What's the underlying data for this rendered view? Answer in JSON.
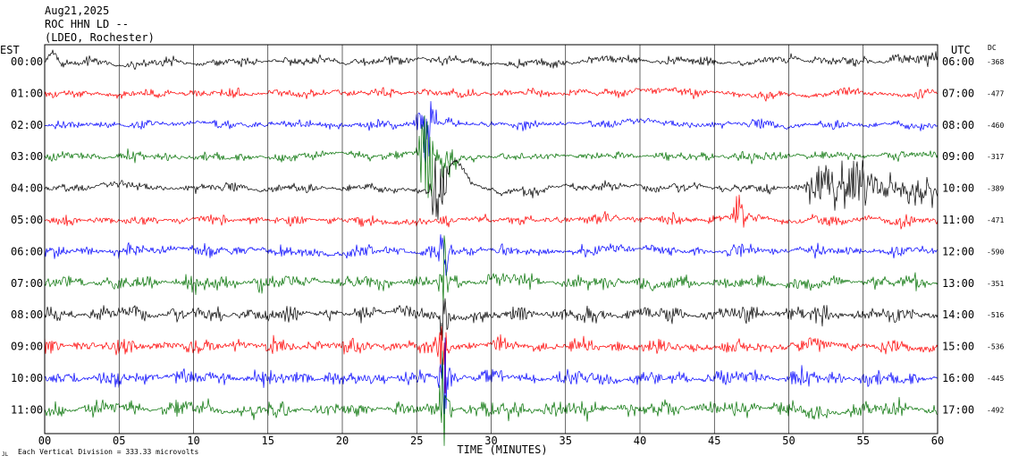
{
  "chart_data": {
    "type": "line",
    "header": {
      "date": "Aug21,2025",
      "station": "ROC HHN LD --",
      "network": "(LDEO, Rochester)"
    },
    "left_timezone": "EST",
    "right_timezone": "UTC",
    "dc_label": "DC",
    "xlabel": "TIME (MINUTES)",
    "xlim": [
      0,
      60
    ],
    "x_ticks": [
      "00",
      "05",
      "10",
      "15",
      "20",
      "25",
      "30",
      "35",
      "40",
      "45",
      "50",
      "55",
      "60"
    ],
    "vertical_division_note": "Each Vertical Division =  333.33 microvolts",
    "corner_mark": "JL",
    "grid": true,
    "trace_colors": [
      "#000000",
      "#ff0000",
      "#0000ff",
      "#007000"
    ],
    "rows": [
      {
        "est": "00:00",
        "utc": "06:00",
        "dc": "-368"
      },
      {
        "est": "01:00",
        "utc": "07:00",
        "dc": "-477"
      },
      {
        "est": "02:00",
        "utc": "08:00",
        "dc": "-460"
      },
      {
        "est": "03:00",
        "utc": "09:00",
        "dc": "-317"
      },
      {
        "est": "04:00",
        "utc": "10:00",
        "dc": "-389"
      },
      {
        "est": "05:00",
        "utc": "11:00",
        "dc": "-471"
      },
      {
        "est": "06:00",
        "utc": "12:00",
        "dc": "-590"
      },
      {
        "est": "07:00",
        "utc": "13:00",
        "dc": "-351"
      },
      {
        "est": "08:00",
        "utc": "14:00",
        "dc": "-516"
      },
      {
        "est": "09:00",
        "utc": "15:00",
        "dc": "-536"
      },
      {
        "est": "10:00",
        "utc": "16:00",
        "dc": "-445"
      },
      {
        "est": "11:00",
        "utc": "17:00",
        "dc": "-492"
      }
    ]
  }
}
